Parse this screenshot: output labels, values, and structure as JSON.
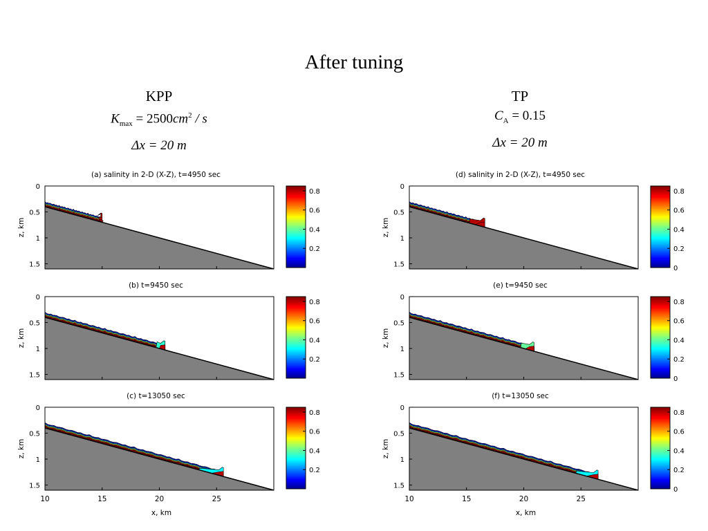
{
  "slide_title": "After tuning",
  "columns": [
    {
      "heading": "KPP",
      "param_symbol": "K",
      "param_sub": "max",
      "param_value": "= 2500",
      "param_unit": "cm",
      "param_unit_sup": "2",
      "param_tail": " / s",
      "dx_label": "Δx = 20 m"
    },
    {
      "heading": "TP",
      "param_symbol": "C",
      "param_sub": "A",
      "param_value": "= 0.15",
      "param_unit": "",
      "param_unit_sup": "",
      "param_tail": "",
      "dx_label": "Δx = 20 m"
    }
  ],
  "chart_data": {
    "type": "heatmap",
    "description_of_axes": "shared",
    "xlabel": "x, km",
    "ylabel": "z, km",
    "xlim": [
      10,
      30
    ],
    "ylim": [
      0,
      1.6
    ],
    "y_inverted": true,
    "x_ticks": [
      10,
      15,
      20,
      25
    ],
    "y_ticks": [
      "0",
      "0.5",
      "1",
      "1.5"
    ],
    "y_tick_values": [
      0,
      0.5,
      1,
      1.5
    ],
    "slope_line": {
      "x": [
        10,
        30
      ],
      "z": [
        0.4,
        1.6
      ]
    },
    "bottom_fill_color": "#808080",
    "colorbar_ticks_left": [
      "0.2",
      "0.4",
      "0.6",
      "0.8"
    ],
    "colorbar_ticks_right": [
      "0",
      "0.2",
      "0.4",
      "0.6",
      "0.8"
    ],
    "colorbar_tick_values": [
      0,
      0.2,
      0.4,
      0.6,
      0.8
    ],
    "colorbar_range": [
      0,
      0.85
    ],
    "panels": [
      {
        "title": "(a) salinity in 2-D (X-Z), t=4950 sec",
        "front_x": 15.0,
        "dense_x": 14.8,
        "head_value": 0.8
      },
      {
        "title": "(b) t=9450 sec",
        "front_x": 20.5,
        "dense_x": 19.7,
        "head_value": 0.35
      },
      {
        "title": "(c) t=13050 sec",
        "front_x": 25.6,
        "dense_x": 23.4,
        "head_value": 0.3
      },
      {
        "title": "(d) salinity in 2-D (X-Z), t=4950 sec",
        "front_x": 16.6,
        "dense_x": 15.2,
        "head_value": 0.8
      },
      {
        "title": "(e) t=9450 sec",
        "front_x": 20.9,
        "dense_x": 19.7,
        "head_value": 0.4
      },
      {
        "title": "(f) t=13050 sec",
        "front_x": 26.5,
        "dense_x": 24.5,
        "head_value": 0.3
      }
    ]
  }
}
